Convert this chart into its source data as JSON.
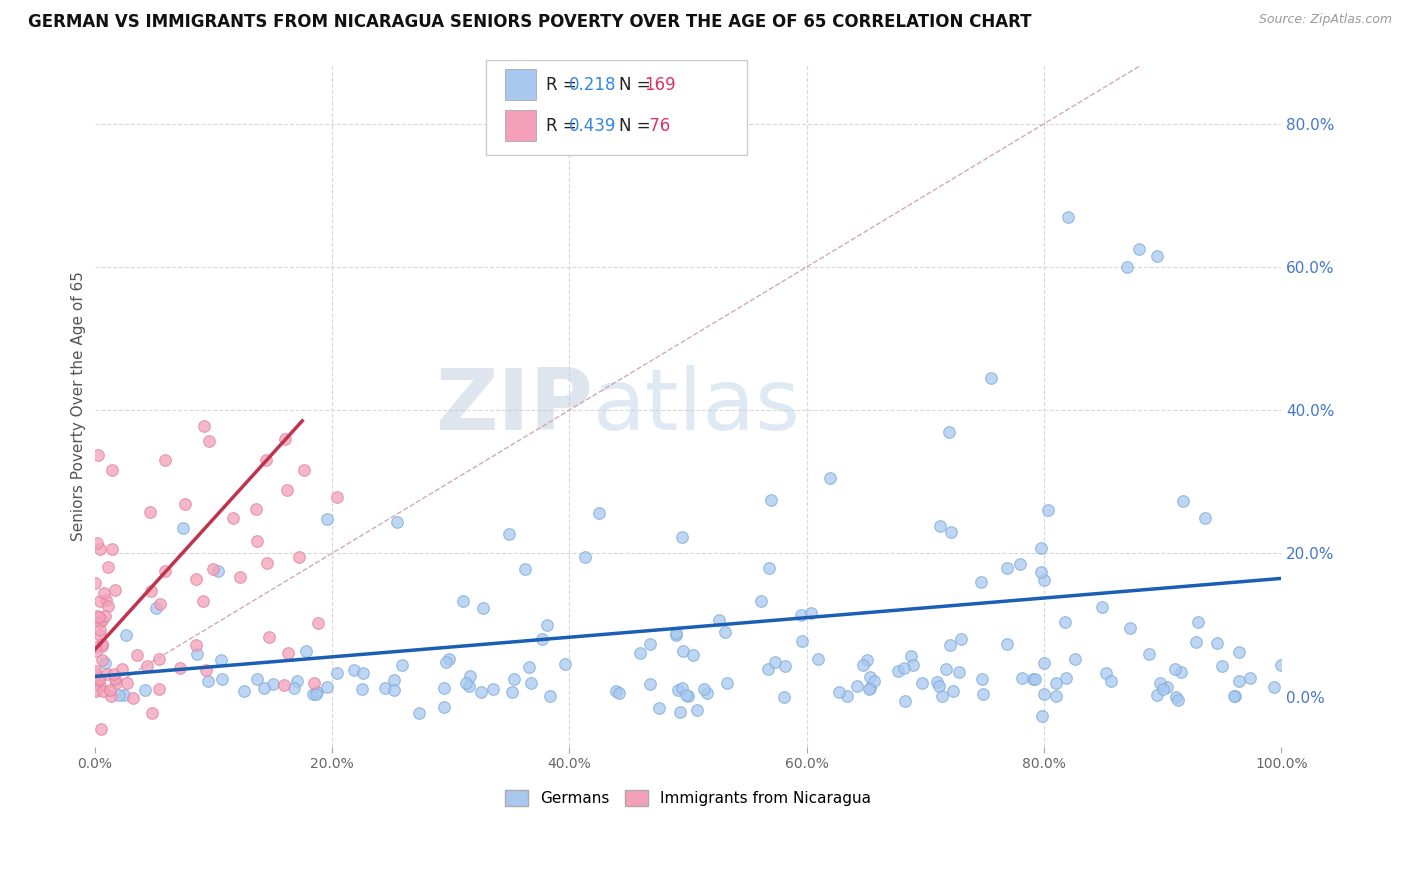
{
  "title": "GERMAN VS IMMIGRANTS FROM NICARAGUA SENIORS POVERTY OVER THE AGE OF 65 CORRELATION CHART",
  "source": "Source: ZipAtlas.com",
  "ylabel": "Seniors Poverty Over the Age of 65",
  "blue_R": 0.218,
  "blue_N": 169,
  "pink_R": 0.439,
  "pink_N": 76,
  "blue_color": "#a8c8f0",
  "pink_color": "#f4a0b8",
  "blue_edge_color": "#7aaad8",
  "pink_edge_color": "#e080a0",
  "blue_line_color": "#1a5fb4",
  "pink_line_color": "#c0334d",
  "diagonal_color": "#d0a0a8",
  "watermark_zip": "ZIP",
  "watermark_atlas": "atlas",
  "background_color": "#ffffff",
  "grid_color": "#d8d8d8",
  "title_fontsize": 12,
  "legend_R_color": "#3388dd",
  "legend_N_color": "#dd3366",
  "axis_label_color": "#4477cc",
  "tick_label_color": "#666666"
}
